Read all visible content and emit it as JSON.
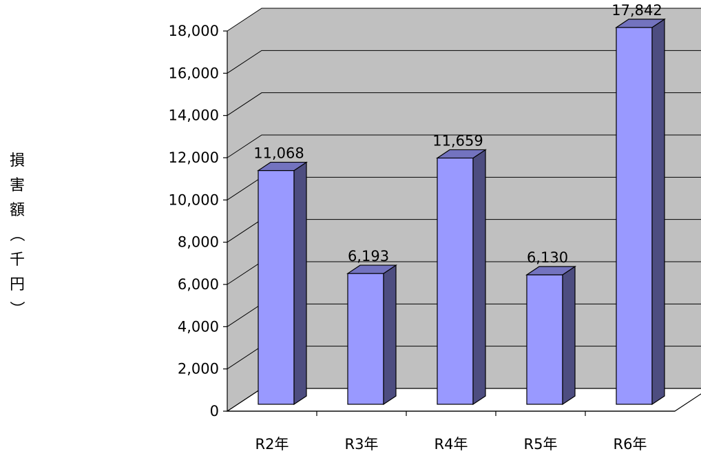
{
  "chart_data": {
    "type": "bar",
    "style": "3d-column",
    "title": "",
    "xlabel": "",
    "ylabel": "損害額（千円）",
    "categories": [
      "R2年",
      "R3年",
      "R4年",
      "R5年",
      "R6年"
    ],
    "values": [
      11068,
      6193,
      11659,
      6130,
      17842
    ],
    "data_labels": [
      "11,068",
      "6,193",
      "11,659",
      "6,130",
      "17,842"
    ],
    "ylim": [
      0,
      18000
    ],
    "yticks": [
      0,
      2000,
      4000,
      6000,
      8000,
      10000,
      12000,
      14000,
      16000,
      18000
    ],
    "ytick_labels": [
      "0",
      "2,000",
      "4,000",
      "6,000",
      "8,000",
      "10,000",
      "12,000",
      "14,000",
      "16,000",
      "18,000"
    ],
    "grid": true,
    "legend": "none"
  },
  "colors": {
    "wall": "#c0c0c0",
    "floor": "#ffffff",
    "bar_front": "#9999ff",
    "bar_top": "#7373bf",
    "bar_side": "#4d4d80",
    "gridline": "#000000"
  }
}
